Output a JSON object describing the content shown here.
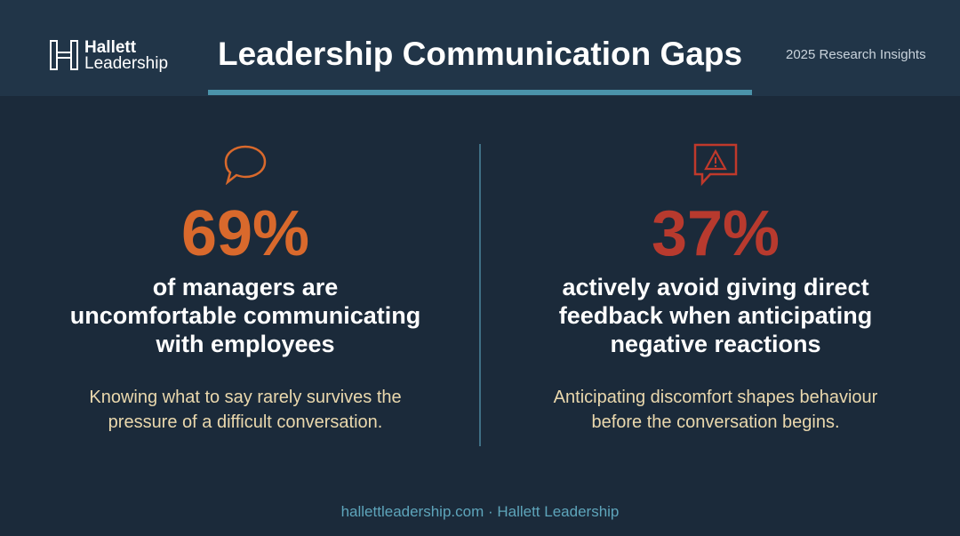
{
  "header": {
    "logo_line1": "Hallett",
    "logo_line2": "Leadership",
    "title": "Leadership Communication Gaps",
    "tag": "2025 Research Insights"
  },
  "stats": [
    {
      "figure": "69%",
      "headline_lines": [
        "of managers are",
        "uncomfortable communicating",
        "with employees"
      ],
      "body_lines": [
        "Knowing what to say rarely survives the",
        "pressure of a difficult conversation."
      ]
    },
    {
      "figure": "37%",
      "headline_lines": [
        "actively avoid giving direct",
        "feedback when anticipating",
        "negative reactions"
      ],
      "body_lines": [
        "Anticipating discomfort shapes behaviour",
        "before the conversation begins."
      ]
    }
  ],
  "footer": "hallettleadership.com · Hallett Leadership"
}
